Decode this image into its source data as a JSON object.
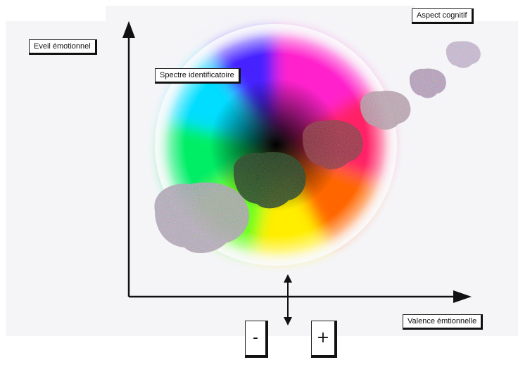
{
  "labels": {
    "y_axis": "Eveil émotionnel",
    "spectrum": "Spectre identificatoire",
    "cognitive": "Aspect cognitif",
    "x_axis": "Valence émtionnelle"
  },
  "signs": {
    "minus": "-",
    "plus": "+"
  },
  "icons": [
    "brain-icon",
    "up-arrow-icon",
    "right-arrow-icon",
    "double-arrow-icon"
  ]
}
